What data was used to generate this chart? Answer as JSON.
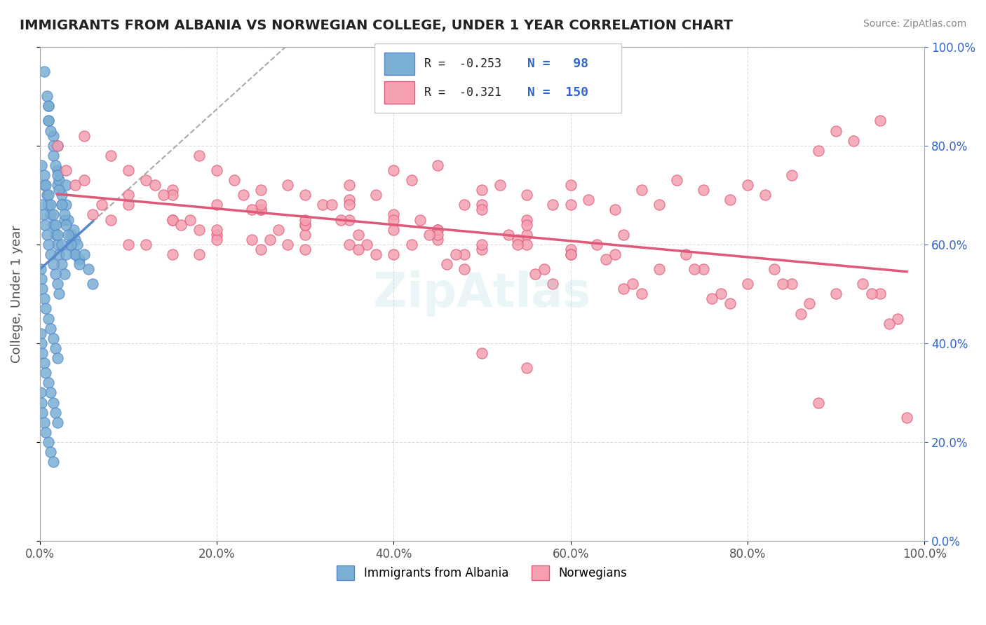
{
  "title": "IMMIGRANTS FROM ALBANIA VS NORWEGIAN COLLEGE, UNDER 1 YEAR CORRELATION CHART",
  "source": "Source: ZipAtlas.com",
  "xlabel": "",
  "ylabel": "College, Under 1 year",
  "xlim": [
    0.0,
    1.0
  ],
  "ylim": [
    0.0,
    1.0
  ],
  "legend_r1": "R = -0.253",
  "legend_n1": "N =  98",
  "legend_r2": "R = -0.321",
  "legend_n2": "N = 150",
  "color_blue": "#7BAFD4",
  "color_pink": "#F4A0B0",
  "color_blue_line": "#5588CC",
  "color_pink_line": "#E05878",
  "color_dashed": "#AAAAAA",
  "title_color": "#222222",
  "legend_color": "#3366CC",
  "right_axis_color": "#3366CC",
  "grid_color": "#CCCCCC",
  "blue_scatter_x": [
    0.01,
    0.01,
    0.015,
    0.02,
    0.02,
    0.02,
    0.022,
    0.025,
    0.025,
    0.028,
    0.03,
    0.03,
    0.032,
    0.035,
    0.035,
    0.038,
    0.04,
    0.04,
    0.042,
    0.045,
    0.005,
    0.008,
    0.01,
    0.01,
    0.012,
    0.015,
    0.015,
    0.018,
    0.02,
    0.022,
    0.025,
    0.028,
    0.03,
    0.032,
    0.035,
    0.04,
    0.045,
    0.05,
    0.055,
    0.06,
    0.005,
    0.008,
    0.01,
    0.012,
    0.015,
    0.018,
    0.02,
    0.022,
    0.025,
    0.028,
    0.002,
    0.005,
    0.007,
    0.01,
    0.012,
    0.015,
    0.018,
    0.02,
    0.025,
    0.03,
    0.002,
    0.004,
    0.006,
    0.008,
    0.01,
    0.012,
    0.015,
    0.018,
    0.02,
    0.022,
    0.001,
    0.002,
    0.003,
    0.005,
    0.007,
    0.01,
    0.012,
    0.015,
    0.018,
    0.02,
    0.001,
    0.002,
    0.003,
    0.005,
    0.007,
    0.01,
    0.012,
    0.015,
    0.018,
    0.02,
    0.001,
    0.002,
    0.003,
    0.005,
    0.007,
    0.01,
    0.012,
    0.015
  ],
  "blue_scatter_y": [
    0.88,
    0.85,
    0.82,
    0.75,
    0.72,
    0.8,
    0.73,
    0.7,
    0.68,
    0.65,
    0.72,
    0.68,
    0.65,
    0.62,
    0.6,
    0.63,
    0.61,
    0.58,
    0.6,
    0.57,
    0.95,
    0.9,
    0.88,
    0.85,
    0.83,
    0.78,
    0.8,
    0.76,
    0.74,
    0.71,
    0.68,
    0.66,
    0.64,
    0.62,
    0.6,
    0.58,
    0.56,
    0.58,
    0.55,
    0.52,
    0.72,
    0.7,
    0.68,
    0.66,
    0.64,
    0.62,
    0.6,
    0.58,
    0.56,
    0.54,
    0.76,
    0.74,
    0.72,
    0.7,
    0.68,
    0.66,
    0.64,
    0.62,
    0.6,
    0.58,
    0.68,
    0.66,
    0.64,
    0.62,
    0.6,
    0.58,
    0.56,
    0.54,
    0.52,
    0.5,
    0.55,
    0.53,
    0.51,
    0.49,
    0.47,
    0.45,
    0.43,
    0.41,
    0.39,
    0.37,
    0.42,
    0.4,
    0.38,
    0.36,
    0.34,
    0.32,
    0.3,
    0.28,
    0.26,
    0.24,
    0.3,
    0.28,
    0.26,
    0.24,
    0.22,
    0.2,
    0.18,
    0.16
  ],
  "pink_scatter_x": [
    0.02,
    0.05,
    0.08,
    0.1,
    0.12,
    0.15,
    0.18,
    0.2,
    0.22,
    0.25,
    0.28,
    0.3,
    0.32,
    0.35,
    0.38,
    0.4,
    0.42,
    0.45,
    0.48,
    0.5,
    0.52,
    0.55,
    0.58,
    0.6,
    0.62,
    0.65,
    0.68,
    0.7,
    0.72,
    0.75,
    0.78,
    0.8,
    0.82,
    0.85,
    0.88,
    0.9,
    0.92,
    0.95,
    0.5,
    0.55,
    0.1,
    0.15,
    0.2,
    0.25,
    0.3,
    0.35,
    0.4,
    0.45,
    0.5,
    0.55,
    0.1,
    0.15,
    0.2,
    0.25,
    0.3,
    0.35,
    0.4,
    0.45,
    0.5,
    0.55,
    0.15,
    0.2,
    0.25,
    0.3,
    0.35,
    0.4,
    0.45,
    0.5,
    0.55,
    0.6,
    0.12,
    0.18,
    0.24,
    0.3,
    0.36,
    0.42,
    0.48,
    0.54,
    0.6,
    0.66,
    0.1,
    0.2,
    0.3,
    0.4,
    0.5,
    0.6,
    0.7,
    0.8,
    0.9,
    0.6,
    0.05,
    0.15,
    0.25,
    0.35,
    0.45,
    0.55,
    0.65,
    0.75,
    0.85,
    0.95,
    0.08,
    0.18,
    0.28,
    0.38,
    0.48,
    0.58,
    0.68,
    0.78,
    0.88,
    0.98,
    0.03,
    0.13,
    0.23,
    0.33,
    0.43,
    0.53,
    0.63,
    0.73,
    0.83,
    0.93,
    0.07,
    0.17,
    0.27,
    0.37,
    0.47,
    0.57,
    0.67,
    0.77,
    0.87,
    0.97,
    0.04,
    0.14,
    0.24,
    0.34,
    0.44,
    0.54,
    0.64,
    0.74,
    0.84,
    0.94,
    0.06,
    0.16,
    0.26,
    0.36,
    0.46,
    0.56,
    0.66,
    0.76,
    0.86,
    0.96
  ],
  "pink_scatter_y": [
    0.8,
    0.82,
    0.78,
    0.75,
    0.73,
    0.71,
    0.78,
    0.75,
    0.73,
    0.71,
    0.72,
    0.7,
    0.68,
    0.72,
    0.7,
    0.75,
    0.73,
    0.76,
    0.68,
    0.71,
    0.72,
    0.7,
    0.68,
    0.72,
    0.69,
    0.67,
    0.71,
    0.68,
    0.73,
    0.71,
    0.69,
    0.72,
    0.7,
    0.74,
    0.79,
    0.83,
    0.81,
    0.85,
    0.38,
    0.35,
    0.68,
    0.65,
    0.62,
    0.67,
    0.64,
    0.69,
    0.66,
    0.63,
    0.68,
    0.65,
    0.6,
    0.58,
    0.61,
    0.59,
    0.62,
    0.6,
    0.58,
    0.61,
    0.59,
    0.62,
    0.65,
    0.63,
    0.67,
    0.64,
    0.68,
    0.65,
    0.63,
    0.67,
    0.64,
    0.68,
    0.6,
    0.58,
    0.61,
    0.59,
    0.62,
    0.6,
    0.58,
    0.61,
    0.59,
    0.62,
    0.7,
    0.68,
    0.65,
    0.63,
    0.6,
    0.58,
    0.55,
    0.52,
    0.5,
    0.58,
    0.73,
    0.7,
    0.68,
    0.65,
    0.62,
    0.6,
    0.58,
    0.55,
    0.52,
    0.5,
    0.65,
    0.63,
    0.6,
    0.58,
    0.55,
    0.52,
    0.5,
    0.48,
    0.28,
    0.25,
    0.75,
    0.72,
    0.7,
    0.68,
    0.65,
    0.62,
    0.6,
    0.58,
    0.55,
    0.52,
    0.68,
    0.65,
    0.63,
    0.6,
    0.58,
    0.55,
    0.52,
    0.5,
    0.48,
    0.45,
    0.72,
    0.7,
    0.67,
    0.65,
    0.62,
    0.6,
    0.57,
    0.55,
    0.52,
    0.5,
    0.66,
    0.64,
    0.61,
    0.59,
    0.56,
    0.54,
    0.51,
    0.49,
    0.46,
    0.44
  ]
}
